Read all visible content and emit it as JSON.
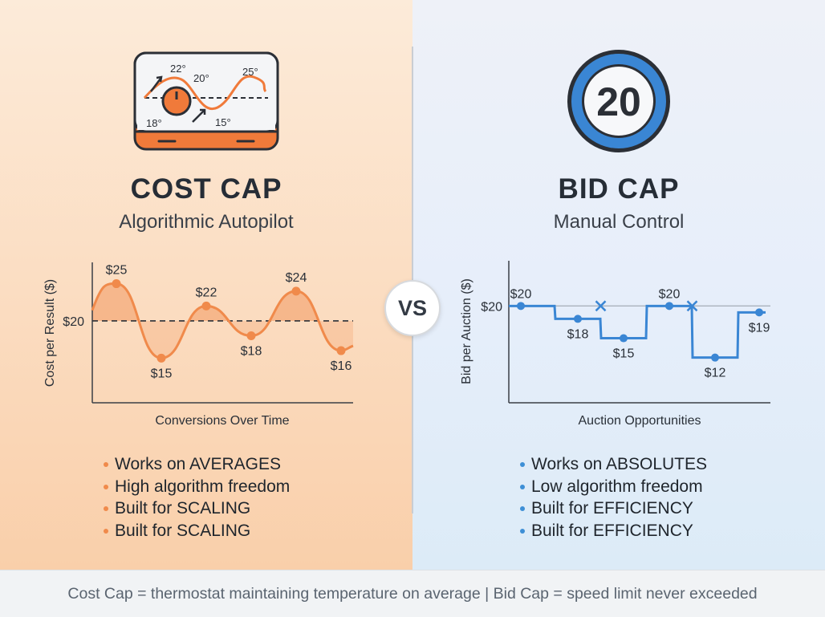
{
  "left": {
    "title": "COST CAP",
    "subtitle": "Algorithmic Autopilot",
    "icon": {
      "name": "thermostat-icon",
      "labels": [
        "22°",
        "20°",
        "25°",
        "18°",
        "15°"
      ],
      "accent": "#f07a3a"
    },
    "bullets": [
      "Works on AVERAGES",
      "High algorithm freedom",
      "Built for SCALING",
      "Built for SCALING"
    ]
  },
  "right": {
    "title": "BID CAP",
    "subtitle": "Manual Control",
    "icon": {
      "name": "speed-limit-sign-icon",
      "value": "20",
      "accent": "#3a86d4"
    },
    "bullets": [
      "Works on ABSOLUTES",
      "Low algorithm freedom",
      "Built for EFFICIENCY",
      "Built for EFFICIENCY"
    ]
  },
  "vs_label": "VS",
  "footer": "Cost Cap = thermostat maintaining temperature on average | Bid Cap = speed limit never exceeded",
  "chart_data": [
    {
      "type": "line",
      "name": "cost-cap-chart",
      "xlabel": "Conversions Over Time",
      "ylabel": "Cost per Result ($)",
      "reference": {
        "value": 20,
        "label": "$20"
      },
      "points": [
        {
          "x": 1,
          "y": 25,
          "label": "$25"
        },
        {
          "x": 2,
          "y": 15,
          "label": "$15"
        },
        {
          "x": 3,
          "y": 22,
          "label": "$22"
        },
        {
          "x": 4,
          "y": 18,
          "label": "$18"
        },
        {
          "x": 5,
          "y": 24,
          "label": "$24"
        },
        {
          "x": 6,
          "y": 16,
          "label": "$16"
        }
      ],
      "ylim": [
        9,
        27
      ],
      "color": "#f08a4b"
    },
    {
      "type": "step",
      "name": "bid-cap-chart",
      "xlabel": "Auction Opportunities",
      "ylabel": "Bid per Auction ($)",
      "reference": {
        "value": 20,
        "label": "$20"
      },
      "points": [
        {
          "x": 1,
          "y": 20,
          "label": "$20"
        },
        {
          "x": 2,
          "y": 18,
          "label": "$18"
        },
        {
          "x": 3,
          "y": 15,
          "label": "$15"
        },
        {
          "x": 4,
          "y": 20,
          "label": "$20"
        },
        {
          "x": 5,
          "y": 12,
          "label": "$12"
        },
        {
          "x": 6,
          "y": 19,
          "label": "$19"
        }
      ],
      "rejected_bids": [
        2.5,
        4.5
      ],
      "ylim": [
        5,
        27
      ],
      "color": "#3a86d4"
    }
  ]
}
